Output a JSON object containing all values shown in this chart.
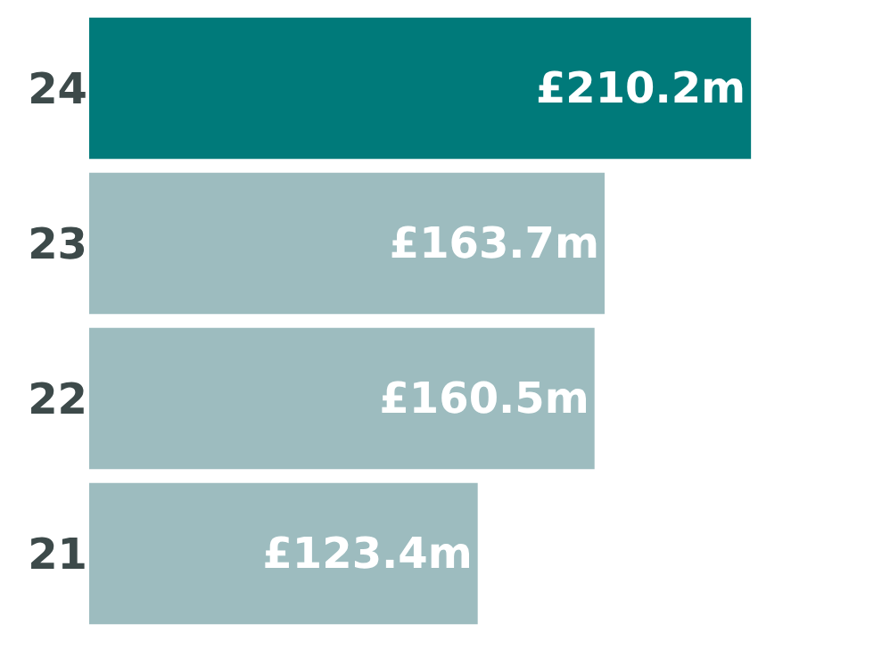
{
  "chart_data": {
    "type": "bar",
    "orientation": "horizontal",
    "categories": [
      "24",
      "23",
      "22",
      "21"
    ],
    "values": [
      210.2,
      163.7,
      160.5,
      123.4
    ],
    "colors": [
      "#007a7a",
      "#9dbcbf",
      "#9dbcbf",
      "#9dbcbf"
    ],
    "value_labels": [
      "£210.2m",
      "£163.7m",
      "£160.5m",
      "£123.4m"
    ],
    "grid": false,
    "legend": false
  }
}
